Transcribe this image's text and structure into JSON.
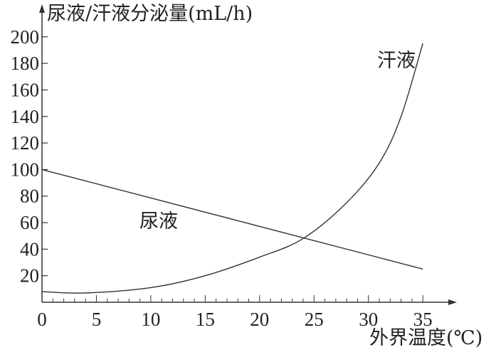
{
  "chart_data": {
    "type": "line",
    "title": "",
    "ylabel": "尿液/汗液分泌量(mL/h)",
    "xlabel": "外界温度(℃)",
    "x_ticks": [
      0,
      5,
      10,
      15,
      20,
      25,
      30,
      35
    ],
    "y_ticks": [
      20,
      40,
      60,
      80,
      100,
      120,
      140,
      160,
      180,
      200
    ],
    "xlim": [
      0,
      37
    ],
    "ylim": [
      0,
      205
    ],
    "grid": false,
    "series": [
      {
        "name": "尿液",
        "x": [
          0,
          5,
          10,
          15,
          20,
          24,
          30,
          35
        ],
        "values": [
          100,
          89,
          79,
          68,
          57,
          48,
          36,
          25
        ]
      },
      {
        "name": "汗液",
        "x": [
          0,
          4,
          10,
          15,
          20,
          24,
          28,
          31,
          33,
          35
        ],
        "values": [
          8,
          7,
          11,
          20,
          34,
          48,
          75,
          105,
          140,
          195
        ]
      }
    ],
    "annotations": [
      {
        "text": "尿液",
        "x": 11,
        "y": 60
      },
      {
        "text": "汗液",
        "x": 32.5,
        "y": 183
      }
    ]
  }
}
